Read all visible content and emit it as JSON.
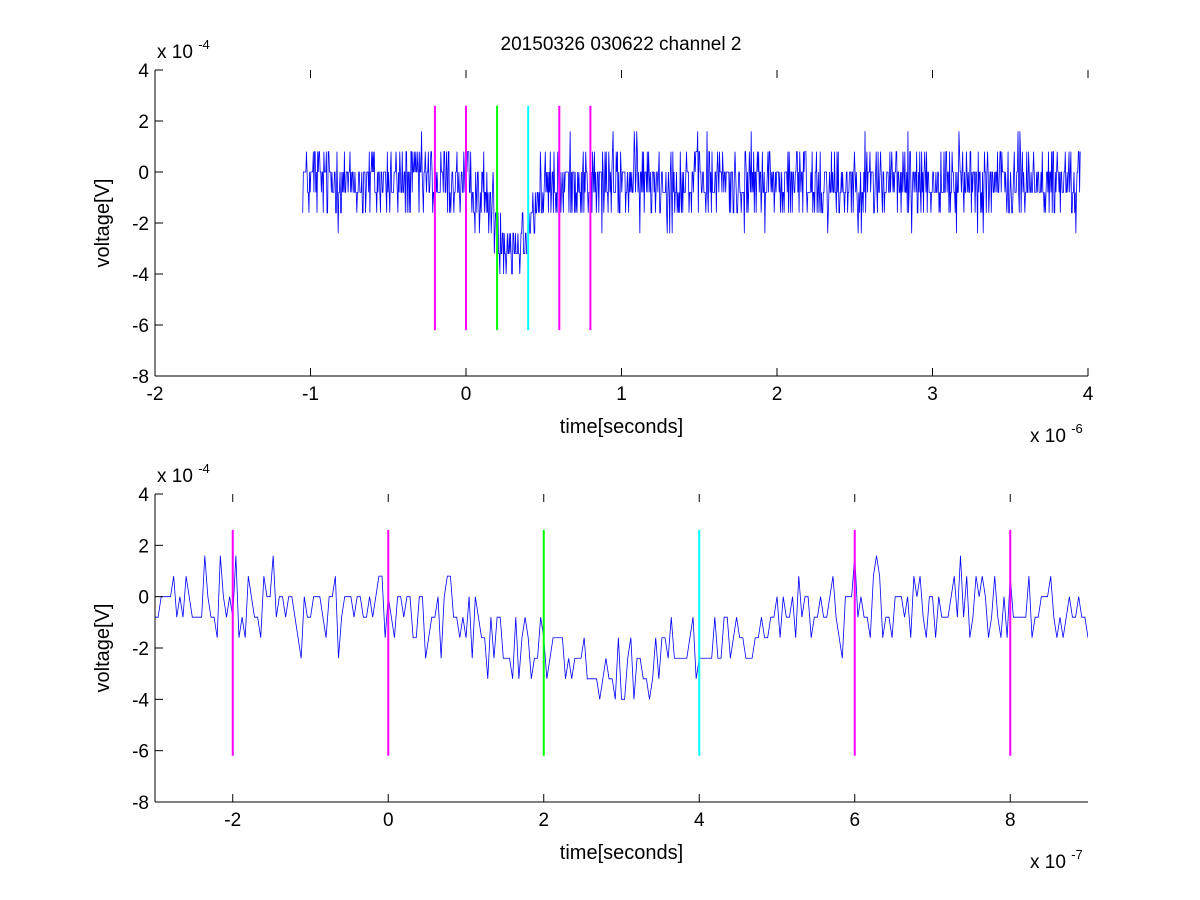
{
  "figure_title": "20150326 030622 channel 2",
  "chart_data": [
    {
      "type": "line",
      "title": "20150326 030622 channel 2",
      "xlabel": "time[seconds]",
      "ylabel": "voltage[V]",
      "x_exponent_label": "x 10",
      "x_exponent": "-6",
      "y_exponent_label": "x 10",
      "y_exponent": "-4",
      "x_scale": 1e-06,
      "y_scale": 0.0001,
      "xlim": [
        -2e-06,
        4e-06
      ],
      "ylim": [
        -0.0008,
        0.0004
      ],
      "x_ticks": [
        -2e-06,
        -1e-06,
        0,
        1e-06,
        2e-06,
        3e-06,
        4e-06
      ],
      "x_tick_labels": [
        "-2",
        "-1",
        "0",
        "1",
        "2",
        "3",
        "4"
      ],
      "y_ticks": [
        -0.0008,
        -0.0006,
        -0.0004,
        -0.0002,
        0,
        0.0002,
        0.0004
      ],
      "y_tick_labels": [
        "-8",
        "-6",
        "-4",
        "-2",
        "0",
        "2",
        "4"
      ],
      "grid": false,
      "signal": {
        "color": "#0000ff",
        "x_start": -1.05e-06,
        "x_end": 3.95e-06,
        "sample_step": 4e-09,
        "y_quantum": 8e-05,
        "baseline": -4e-05,
        "dip_center": 3e-07,
        "dip_width": 1.5e-07,
        "dip_depth": -0.00025
      },
      "markers": [
        {
          "x": -2e-07,
          "color": "#ff00ff",
          "ymin": -0.00062,
          "ymax": 0.00026
        },
        {
          "x": 0,
          "color": "#ff00ff",
          "ymin": -0.00062,
          "ymax": 0.00026
        },
        {
          "x": 2e-07,
          "color": "#00ff00",
          "ymin": -0.00062,
          "ymax": 0.00026
        },
        {
          "x": 4e-07,
          "color": "#00ffff",
          "ymin": -0.00062,
          "ymax": 0.00026
        },
        {
          "x": 6e-07,
          "color": "#ff00ff",
          "ymin": -0.00062,
          "ymax": 0.00026
        },
        {
          "x": 8e-07,
          "color": "#ff00ff",
          "ymin": -0.00062,
          "ymax": 0.00026
        }
      ]
    },
    {
      "type": "line",
      "title": "",
      "xlabel": "time[seconds]",
      "ylabel": "voltage[V]",
      "x_exponent_label": "x 10",
      "x_exponent": "-7",
      "y_exponent_label": "x 10",
      "y_exponent": "-4",
      "x_scale": 1e-07,
      "y_scale": 0.0001,
      "xlim": [
        -3e-07,
        9e-07
      ],
      "ylim": [
        -0.0008,
        0.0004
      ],
      "x_ticks": [
        -2e-07,
        0,
        2e-07,
        4e-07,
        6e-07,
        8e-07
      ],
      "x_tick_labels": [
        "-2",
        "0",
        "2",
        "4",
        "6",
        "8"
      ],
      "y_ticks": [
        -0.0008,
        -0.0006,
        -0.0004,
        -0.0002,
        0,
        0.0002,
        0.0004
      ],
      "y_tick_labels": [
        "-8",
        "-6",
        "-4",
        "-2",
        "0",
        "2",
        "4"
      ],
      "grid": false,
      "signal": {
        "color": "#0000ff",
        "x_start": -3e-07,
        "x_end": 9e-07,
        "sample_step": 4e-09,
        "y_quantum": 8e-05,
        "baseline": -4e-05,
        "dip_center": 3e-07,
        "dip_width": 1.5e-07,
        "dip_depth": -0.00025
      },
      "markers": [
        {
          "x": -2e-07,
          "color": "#ff00ff",
          "ymin": -0.00062,
          "ymax": 0.00026
        },
        {
          "x": 0,
          "color": "#ff00ff",
          "ymin": -0.00062,
          "ymax": 0.00026
        },
        {
          "x": 2e-07,
          "color": "#00ff00",
          "ymin": -0.00062,
          "ymax": 0.00026
        },
        {
          "x": 4e-07,
          "color": "#00ffff",
          "ymin": -0.00062,
          "ymax": 0.00026
        },
        {
          "x": 6e-07,
          "color": "#ff00ff",
          "ymin": -0.00062,
          "ymax": 0.00026
        },
        {
          "x": 8e-07,
          "color": "#ff00ff",
          "ymin": -0.00062,
          "ymax": 0.00026
        }
      ]
    }
  ]
}
